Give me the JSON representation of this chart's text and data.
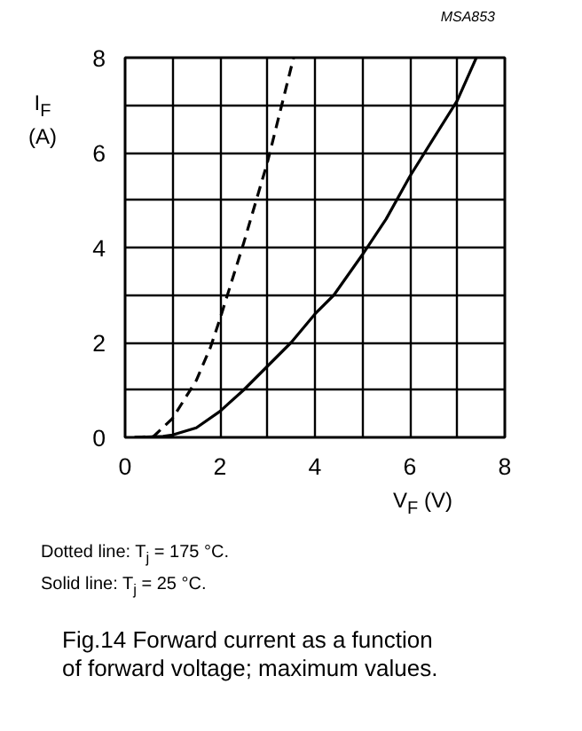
{
  "chart_data": {
    "type": "line",
    "title": "Fig.14  Forward current as a function of forward voltage; maximum values.",
    "xlabel": "V$_{F}$ (V)",
    "ylabel": "I$_{F}$ (A)",
    "xlim": [
      0,
      8
    ],
    "ylim": [
      0,
      8
    ],
    "xticks": [
      0,
      {
        "value": 1,
        "label": null
      },
      2,
      {
        "value": 3,
        "label": null
      },
      4,
      {
        "value": 5,
        "label": null
      },
      6,
      {
        "value": 7,
        "label": null
      },
      8
    ],
    "yticks": [
      0,
      {
        "value": 1,
        "label": null
      },
      2,
      {
        "value": 3,
        "label": null
      },
      4,
      {
        "value": 5,
        "label": null
      },
      6,
      {
        "value": 7,
        "label": null
      },
      8
    ],
    "grid": true,
    "marker": "none",
    "series": [
      {
        "color": "#000000",
        "line_style": "dashed",
        "x": [
          0.2,
          0.6,
          1.0,
          1.5,
          1.8,
          2.0,
          2.5,
          3.0,
          3.3,
          3.55
        ],
        "values": [
          0,
          0.02,
          0.4,
          1.2,
          1.9,
          2.5,
          4.1,
          5.8,
          7.0,
          8.0
        ]
      },
      {
        "color": "#000000",
        "line_style": "solid",
        "x": [
          0.2,
          0.8,
          1.0,
          1.5,
          2.0,
          2.5,
          3.0,
          3.5,
          4.0,
          4.4,
          5.0,
          5.5,
          6.0,
          6.5,
          7.0,
          7.4
        ],
        "values": [
          0,
          0.02,
          0.05,
          0.2,
          0.55,
          1.0,
          1.5,
          2.0,
          2.6,
          3.0,
          3.85,
          4.6,
          5.5,
          6.3,
          7.1,
          8.0
        ]
      }
    ],
    "annotations": [
      "MSA853",
      "Dotted line: T$_{j}$ = 175 °C.",
      "Solid line: T$_{j}$ = 25 °C."
    ]
  }
}
